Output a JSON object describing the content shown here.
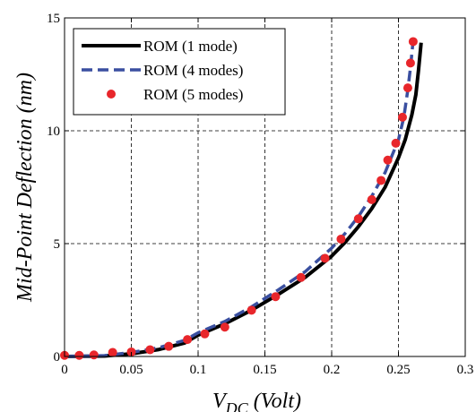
{
  "chart_data": {
    "type": "line",
    "title": "",
    "xlabel_main": "V",
    "xlabel_sub": "DC",
    "xlabel_rest": " (Volt)",
    "ylabel": "Mid-Point Deflection (nm)",
    "xlim": [
      0,
      0.3
    ],
    "ylim": [
      0,
      15
    ],
    "xticks": [
      0,
      0.05,
      0.1,
      0.15,
      0.2,
      0.25,
      0.3
    ],
    "xtick_labels": [
      "0",
      "0.05",
      "0.1",
      "0.15",
      "0.2",
      "0.25",
      "0.3"
    ],
    "yticks": [
      0,
      5,
      10,
      15
    ],
    "ytick_labels": [
      "0",
      "5",
      "10",
      "15"
    ],
    "grid": true,
    "legend_position": "top-left",
    "series": [
      {
        "name": "ROM (1 mode)",
        "style": "solid",
        "color": "#000000",
        "x": [
          0,
          0.03,
          0.05,
          0.07,
          0.09,
          0.1,
          0.12,
          0.14,
          0.16,
          0.18,
          0.2,
          0.21,
          0.22,
          0.23,
          0.24,
          0.25,
          0.255,
          0.26,
          0.263,
          0.265,
          0.267
        ],
        "y": [
          0,
          0.02,
          0.12,
          0.3,
          0.6,
          0.95,
          1.45,
          2.05,
          2.75,
          3.5,
          4.45,
          5.05,
          5.75,
          6.55,
          7.5,
          8.8,
          9.6,
          10.7,
          11.6,
          12.7,
          13.9
        ]
      },
      {
        "name": "ROM (4 modes)",
        "style": "dashed",
        "color": "#3a4fa0",
        "x": [
          0,
          0.03,
          0.05,
          0.07,
          0.09,
          0.1,
          0.12,
          0.14,
          0.16,
          0.18,
          0.2,
          0.21,
          0.22,
          0.23,
          0.24,
          0.25,
          0.254,
          0.257,
          0.259,
          0.261
        ],
        "y": [
          0,
          0.04,
          0.18,
          0.38,
          0.72,
          1.05,
          1.55,
          2.2,
          2.95,
          3.75,
          4.8,
          5.45,
          6.2,
          7.1,
          8.15,
          9.6,
          10.6,
          11.8,
          12.8,
          14.0
        ]
      },
      {
        "name": "ROM (5 modes)",
        "style": "markers",
        "color": "#e8262b",
        "x": [
          0,
          0.011,
          0.022,
          0.036,
          0.05,
          0.064,
          0.078,
          0.092,
          0.105,
          0.12,
          0.14,
          0.158,
          0.177,
          0.195,
          0.207,
          0.22,
          0.23,
          0.237,
          0.242,
          0.248,
          0.253,
          0.257,
          0.259,
          0.261
        ],
        "y": [
          0.05,
          0.05,
          0.07,
          0.18,
          0.2,
          0.3,
          0.45,
          0.75,
          1.0,
          1.3,
          2.05,
          2.65,
          3.5,
          4.35,
          5.2,
          6.1,
          6.95,
          7.8,
          8.7,
          9.45,
          10.6,
          11.9,
          13.0,
          13.95
        ]
      }
    ]
  }
}
